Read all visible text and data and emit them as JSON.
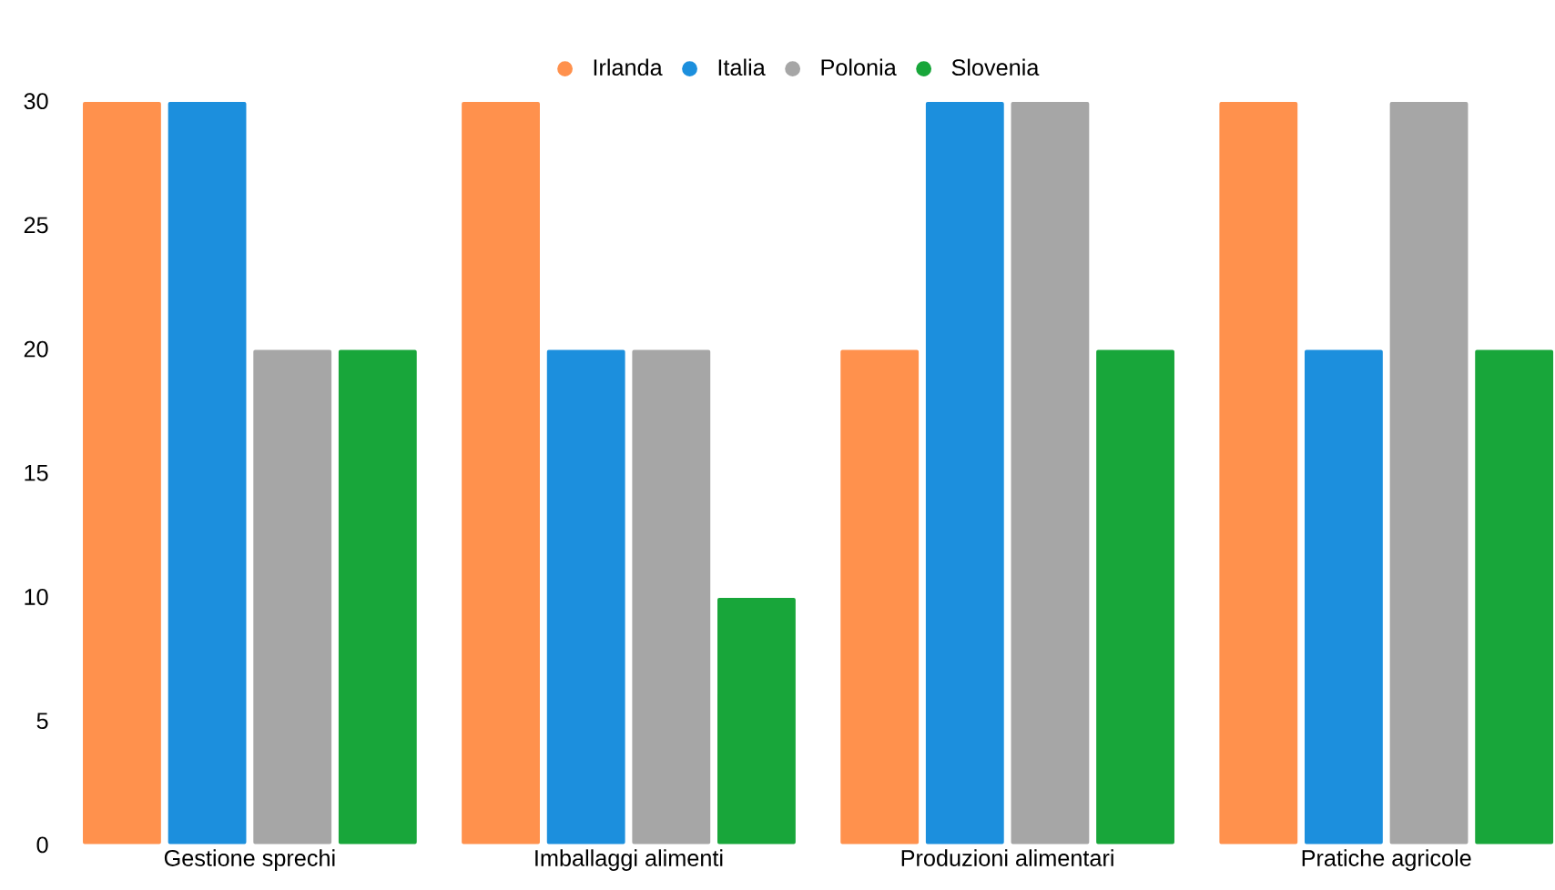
{
  "chart_data": {
    "type": "bar",
    "categories": [
      "Gestione sprechi",
      "Imballaggi alimenti",
      "Produzioni alimentari",
      "Pratiche agricole"
    ],
    "series": [
      {
        "name": "Irlanda",
        "color": "#ff914d",
        "values": [
          30,
          30,
          20,
          30
        ]
      },
      {
        "name": "Italia",
        "color": "#1c8fdd",
        "values": [
          30,
          20,
          30,
          20
        ]
      },
      {
        "name": "Polonia",
        "color": "#a6a6a6",
        "values": [
          20,
          20,
          30,
          30
        ]
      },
      {
        "name": "Slovenia",
        "color": "#18a63a",
        "values": [
          20,
          10,
          20,
          20
        ]
      }
    ],
    "ylim": [
      0,
      30
    ],
    "yticks": [
      0,
      5,
      10,
      15,
      20,
      25,
      30
    ],
    "legend": "top"
  }
}
